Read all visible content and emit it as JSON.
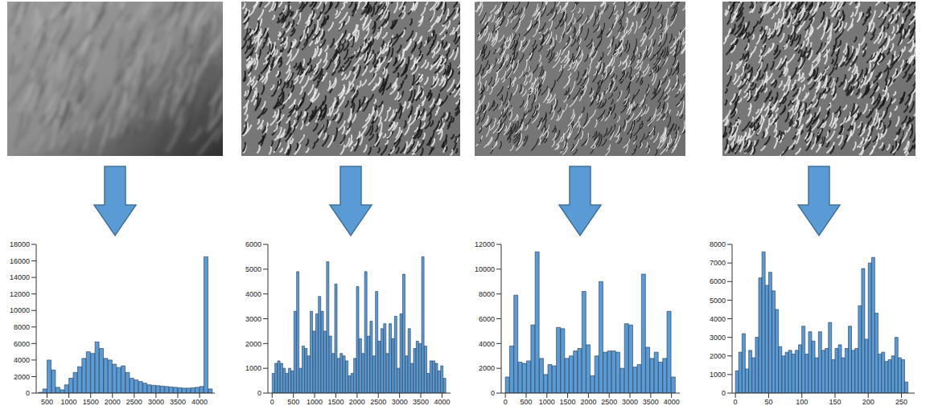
{
  "chart_data": [
    {
      "type": "histogram",
      "color": "#5b9bd5",
      "bins": [
        300,
        400,
        500,
        600,
        700,
        800,
        900,
        1000,
        1100,
        1200,
        1300,
        1400,
        1500,
        1600,
        1700,
        1800,
        1900,
        2000,
        2100,
        2200,
        2300,
        2400,
        2500,
        2600,
        2700,
        2800,
        2900,
        3000,
        3100,
        3200,
        3300,
        3400,
        3500,
        3600,
        3700,
        3800,
        3900,
        4000,
        4100,
        4200,
        4300
      ],
      "counts": [
        100,
        500,
        4000,
        2800,
        700,
        400,
        1000,
        1800,
        2500,
        3200,
        4200,
        5000,
        4800,
        6200,
        5400,
        4200,
        4000,
        3500,
        3100,
        3300,
        2500,
        1800,
        1600,
        1400,
        1200,
        1000,
        950,
        900,
        850,
        800,
        750,
        700,
        650,
        600,
        600,
        650,
        700,
        800,
        16500,
        500
      ],
      "xlim": [
        250,
        4350
      ],
      "xticks": [
        500,
        1000,
        1500,
        2000,
        2500,
        3000,
        3500,
        4000
      ],
      "ylim": [
        0,
        18000
      ],
      "yticks": [
        0,
        2000,
        4000,
        6000,
        8000,
        10000,
        12000,
        14000,
        16000,
        18000
      ]
    },
    {
      "type": "histogram",
      "color": "#5b9bd5",
      "bins": [
        0,
        64,
        128,
        192,
        256,
        320,
        384,
        448,
        512,
        576,
        640,
        704,
        768,
        832,
        896,
        960,
        1024,
        1088,
        1152,
        1216,
        1280,
        1344,
        1408,
        1472,
        1536,
        1600,
        1664,
        1728,
        1792,
        1856,
        1920,
        1984,
        2048,
        2112,
        2176,
        2240,
        2304,
        2368,
        2432,
        2496,
        2560,
        2624,
        2688,
        2752,
        2816,
        2880,
        2944,
        3008,
        3072,
        3136,
        3200,
        3264,
        3328,
        3392,
        3456,
        3520,
        3584,
        3648,
        3712,
        3776,
        3840,
        3904,
        3968,
        4032,
        4096
      ],
      "counts": [
        800,
        1200,
        1300,
        1200,
        1000,
        800,
        1000,
        900,
        3300,
        4900,
        1000,
        1900,
        1800,
        1500,
        3300,
        2500,
        3200,
        3900,
        3300,
        2500,
        5300,
        2300,
        1600,
        4400,
        1400,
        1600,
        1500,
        1300,
        700,
        800,
        1400,
        4300,
        2200,
        1600,
        4900,
        2300,
        2900,
        1500,
        4100,
        2100,
        2600,
        2800,
        1600,
        2800,
        2200,
        3100,
        1000,
        3200,
        4800,
        1500,
        2600,
        1200,
        1800,
        2100,
        2000,
        5500,
        1900,
        800,
        1300,
        1300,
        1200,
        900,
        1100,
        600
      ],
      "xlim": [
        -100,
        4200
      ],
      "xticks": [
        0,
        500,
        1000,
        1500,
        2000,
        2500,
        3000,
        3500,
        4000
      ],
      "ylim": [
        0,
        6000
      ],
      "yticks": [
        0,
        1000,
        2000,
        3000,
        4000,
        5000,
        6000
      ]
    },
    {
      "type": "histogram",
      "color": "#5b9bd5",
      "bins": [
        0,
        102.4,
        204.8,
        307.2,
        409.6,
        512,
        614.4,
        716.8,
        819.2,
        921.6,
        1024,
        1126.4,
        1228.8,
        1331.2,
        1433.6,
        1536,
        1638.4,
        1740.8,
        1843.2,
        1945.6,
        2048,
        2150.4,
        2252.8,
        2355.2,
        2457.6,
        2560,
        2662.4,
        2764.8,
        2867.2,
        2969.6,
        3072,
        3174.4,
        3276.8,
        3379.2,
        3481.6,
        3584,
        3686.4,
        3788.8,
        3891.2,
        3993.6,
        4096
      ],
      "counts": [
        1300,
        3800,
        7900,
        2500,
        2400,
        2600,
        5500,
        11400,
        2800,
        1500,
        2300,
        2200,
        5300,
        5200,
        2800,
        3000,
        3400,
        3600,
        8200,
        3900,
        1400,
        3000,
        9000,
        3300,
        3400,
        3400,
        3300,
        2000,
        5600,
        5500,
        2100,
        2300,
        9600,
        3700,
        2800,
        3300,
        2500,
        2800,
        6600,
        1300
      ],
      "xlim": [
        -100,
        4200
      ],
      "xticks": [
        0,
        500,
        1000,
        1500,
        2000,
        2500,
        3000,
        3500,
        4000
      ],
      "ylim": [
        0,
        12000
      ],
      "yticks": [
        0,
        2000,
        4000,
        6000,
        8000,
        10000,
        12000
      ]
    },
    {
      "type": "histogram",
      "color": "#5b9bd5",
      "bins": [
        0,
        5,
        10,
        15,
        20,
        25,
        30,
        35,
        40,
        45,
        50,
        55,
        60,
        65,
        70,
        75,
        80,
        85,
        90,
        95,
        100,
        105,
        110,
        115,
        120,
        125,
        130,
        135,
        140,
        145,
        150,
        155,
        160,
        165,
        170,
        175,
        180,
        185,
        190,
        195,
        200,
        205,
        210,
        215,
        220,
        225,
        230,
        235,
        240,
        245,
        250,
        255,
        260
      ],
      "counts": [
        1200,
        2200,
        3200,
        1300,
        2300,
        1900,
        3000,
        6200,
        7600,
        5800,
        6500,
        5500,
        4500,
        2500,
        2000,
        2200,
        2300,
        2100,
        2300,
        2600,
        3600,
        2100,
        3300,
        2800,
        1900,
        3300,
        2300,
        2400,
        3800,
        1800,
        2400,
        2600,
        1900,
        2400,
        3600,
        2300,
        2400,
        4700,
        6700,
        2900,
        7000,
        7300,
        4300,
        2100,
        2200,
        1700,
        1800,
        2000,
        3000,
        1900,
        1800,
        600
      ],
      "xlim": [
        -5,
        270
      ],
      "xticks": [
        0,
        50,
        100,
        150,
        200,
        250
      ],
      "ylim": [
        0,
        8000
      ],
      "yticks": [
        0,
        1000,
        2000,
        3000,
        4000,
        5000,
        6000,
        7000,
        8000
      ]
    }
  ]
}
